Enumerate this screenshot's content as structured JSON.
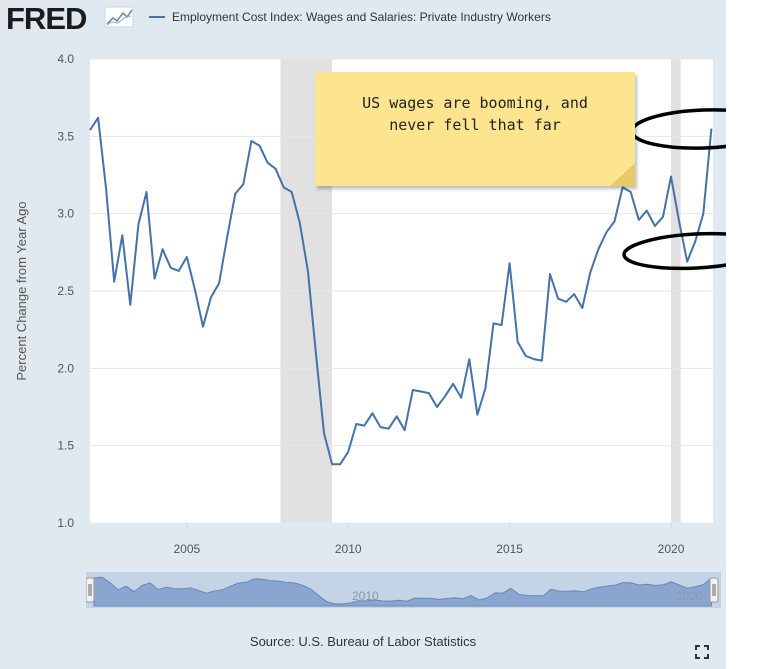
{
  "header": {
    "logo_text": "FRED",
    "legend_label": "Employment Cost Index: Wages and Salaries: Private Industry Workers",
    "series_color": "#4572a7"
  },
  "annotation": {
    "text": "US wages are booming, and\nnever fell that far",
    "background": "#fde58f"
  },
  "footer": {
    "source": "Source: U.S. Bureau of Labor Statistics"
  },
  "navigator": {
    "labels": [
      "2010",
      "2020"
    ],
    "color": "#8aa6d0"
  },
  "icons": [
    "fred-logo-mark-icon",
    "fullscreen-icon",
    "navigator-handle-icon"
  ],
  "chart_data": {
    "type": "line",
    "title": "",
    "xlabel": "",
    "ylabel": "Percent Change from Year Ago",
    "xlim": [
      2002.0,
      2021.3
    ],
    "ylim": [
      1.0,
      4.0
    ],
    "yticks": [
      "1.0",
      "1.5",
      "2.0",
      "2.5",
      "3.0",
      "3.5",
      "4.0"
    ],
    "xticks": [
      "2005",
      "2010",
      "2015",
      "2020"
    ],
    "recessions": [
      [
        2007.9,
        2009.5
      ],
      [
        2020.0,
        2020.3
      ]
    ],
    "grid": true,
    "series": [
      {
        "name": "Employment Cost Index: Wages and Salaries: Private Industry Workers",
        "x": [
          2002.0,
          2002.25,
          2002.5,
          2002.75,
          2003.0,
          2003.25,
          2003.5,
          2003.75,
          2004.0,
          2004.25,
          2004.5,
          2004.75,
          2005.0,
          2005.25,
          2005.5,
          2005.75,
          2006.0,
          2006.25,
          2006.5,
          2006.75,
          2007.0,
          2007.25,
          2007.5,
          2007.75,
          2008.0,
          2008.25,
          2008.5,
          2008.75,
          2009.0,
          2009.25,
          2009.5,
          2009.75,
          2010.0,
          2010.25,
          2010.5,
          2010.75,
          2011.0,
          2011.25,
          2011.5,
          2011.75,
          2012.0,
          2012.25,
          2012.5,
          2012.75,
          2013.0,
          2013.25,
          2013.5,
          2013.75,
          2014.0,
          2014.25,
          2014.5,
          2014.75,
          2015.0,
          2015.25,
          2015.5,
          2015.75,
          2016.0,
          2016.25,
          2016.5,
          2016.75,
          2017.0,
          2017.25,
          2017.5,
          2017.75,
          2018.0,
          2018.25,
          2018.5,
          2018.75,
          2019.0,
          2019.25,
          2019.5,
          2019.75,
          2020.0,
          2020.25,
          2020.5,
          2020.75,
          2021.0,
          2021.25
        ],
        "values": [
          3.54,
          3.62,
          3.16,
          2.56,
          2.86,
          2.41,
          2.93,
          3.14,
          2.58,
          2.77,
          2.65,
          2.63,
          2.72,
          2.51,
          2.27,
          2.46,
          2.55,
          2.85,
          3.13,
          3.19,
          3.47,
          3.44,
          3.33,
          3.29,
          3.17,
          3.14,
          2.94,
          2.63,
          2.09,
          1.58,
          1.38,
          1.38,
          1.46,
          1.64,
          1.63,
          1.71,
          1.62,
          1.61,
          1.69,
          1.6,
          1.86,
          1.85,
          1.84,
          1.75,
          1.82,
          1.9,
          1.81,
          2.06,
          1.7,
          1.87,
          2.29,
          2.28,
          2.68,
          2.17,
          2.08,
          2.06,
          2.05,
          2.61,
          2.45,
          2.43,
          2.48,
          2.39,
          2.62,
          2.77,
          2.88,
          2.95,
          3.17,
          3.14,
          2.96,
          3.02,
          2.92,
          2.98,
          3.24,
          2.95,
          2.69,
          2.82,
          3.0,
          3.55
        ]
      }
    ]
  }
}
